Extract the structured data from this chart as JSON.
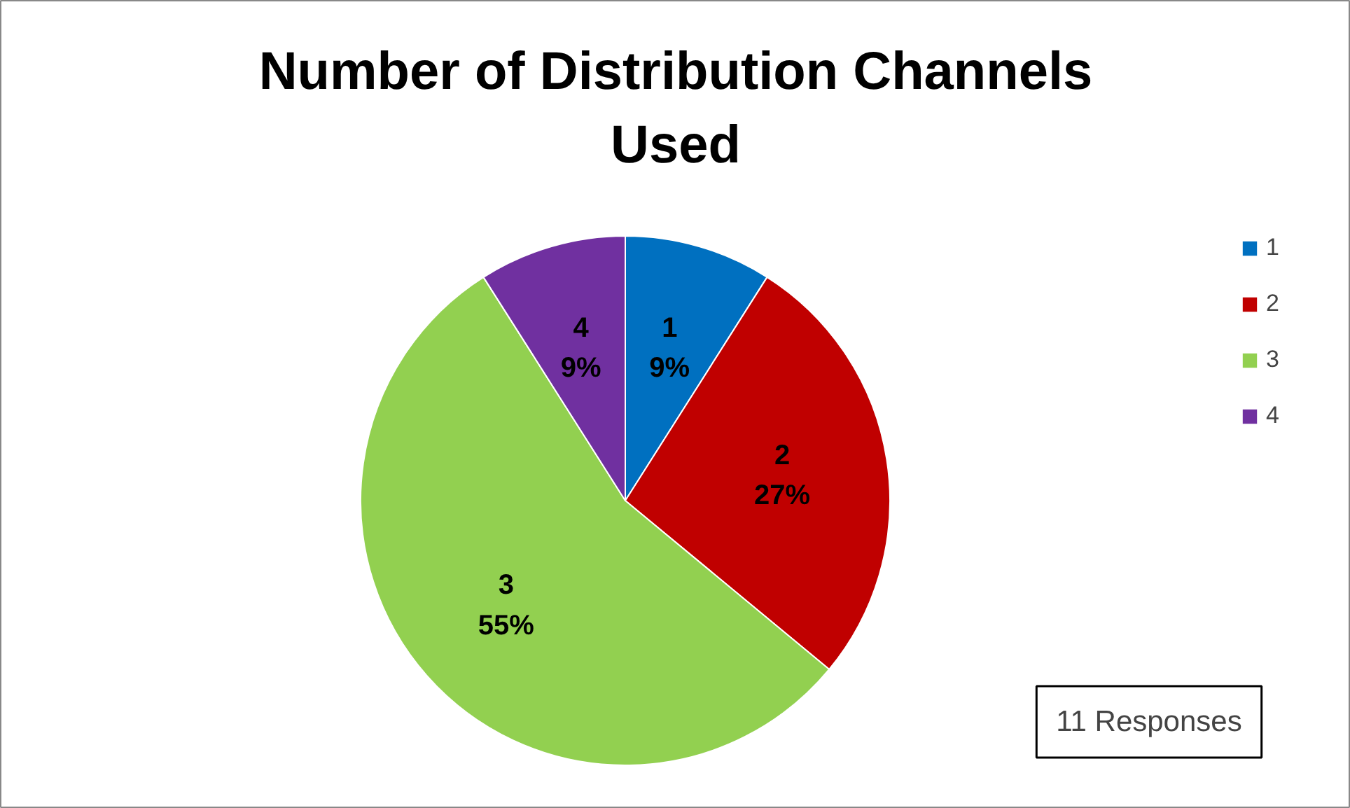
{
  "chart_data": {
    "type": "pie",
    "title": "Number of Distribution Channels Used",
    "categories": [
      "1",
      "2",
      "3",
      "4"
    ],
    "values": [
      9,
      27,
      55,
      9
    ],
    "colors": [
      "#0070c0",
      "#c00000",
      "#92d050",
      "#7030a0"
    ],
    "value_labels": [
      "9%",
      "27%",
      "55%",
      "9%"
    ],
    "legend": "right",
    "annotations": [
      "11 Responses"
    ]
  }
}
